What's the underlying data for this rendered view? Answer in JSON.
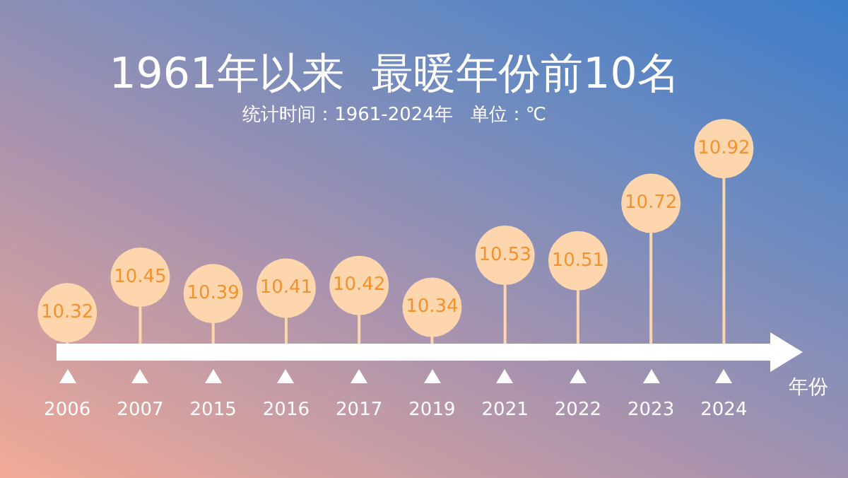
{
  "chart_data": {
    "type": "lollipop",
    "title": "1961年以来  最暖年份前10名",
    "subtitle": "统计时间：1961-2024年   单位：℃",
    "xlabel": "年份",
    "categories": [
      "2006",
      "2007",
      "2015",
      "2016",
      "2017",
      "2019",
      "2021",
      "2022",
      "2023",
      "2024"
    ],
    "values": [
      10.32,
      10.45,
      10.39,
      10.41,
      10.42,
      10.34,
      10.53,
      10.51,
      10.72,
      10.92
    ],
    "color": "#fdd6ae",
    "tick_labels": "x",
    "data_labels": true
  }
}
